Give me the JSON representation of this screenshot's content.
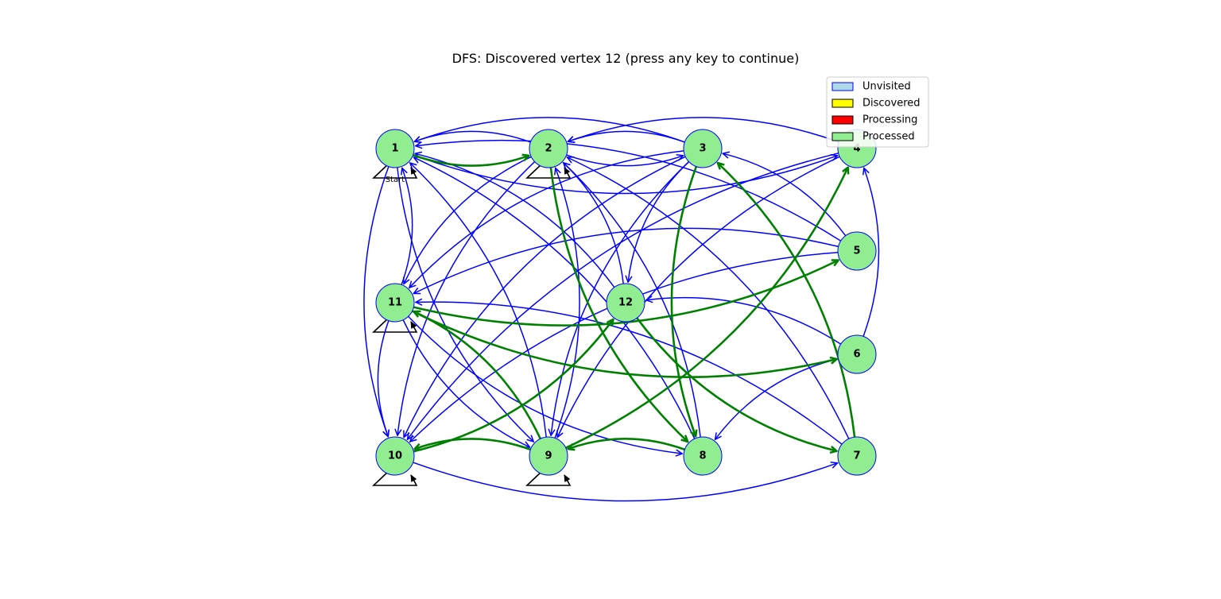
{
  "title": "DFS: Discovered vertex 12 (press any key to continue)",
  "start_label": "Start",
  "colors": {
    "tree_edge": "#008000",
    "edge": "#0000ff",
    "self_loop": "#000000",
    "node_fill": "#90ee90",
    "node_stroke": "#0000ff"
  },
  "legend": [
    {
      "label": "Unvisited",
      "color": "#add8e6"
    },
    {
      "label": "Discovered",
      "color": "#ffff00"
    },
    {
      "label": "Processing",
      "color": "#ff0000"
    },
    {
      "label": "Processed",
      "color": "#90ee90"
    }
  ],
  "nodes": [
    {
      "id": "1",
      "state": "Processed"
    },
    {
      "id": "2",
      "state": "Processed"
    },
    {
      "id": "3",
      "state": "Processed"
    },
    {
      "id": "4",
      "state": "Processed"
    },
    {
      "id": "5",
      "state": "Processed"
    },
    {
      "id": "6",
      "state": "Processed"
    },
    {
      "id": "7",
      "state": "Processed"
    },
    {
      "id": "8",
      "state": "Processed"
    },
    {
      "id": "9",
      "state": "Processed"
    },
    {
      "id": "10",
      "state": "Processed"
    },
    {
      "id": "11",
      "state": "Processed"
    },
    {
      "id": "12",
      "state": "Processed"
    }
  ],
  "start_node": "1",
  "tree_edges": [
    [
      "1",
      "2"
    ],
    [
      "2",
      "8"
    ],
    [
      "8",
      "9"
    ],
    [
      "9",
      "10"
    ],
    [
      "10",
      "12"
    ],
    [
      "12",
      "7"
    ],
    [
      "7",
      "3"
    ],
    [
      "3",
      "8"
    ],
    [
      "9",
      "11"
    ],
    [
      "11",
      "5"
    ],
    [
      "11",
      "6"
    ],
    [
      "9",
      "4"
    ]
  ],
  "edges": [
    [
      "2",
      "1"
    ],
    [
      "1",
      "4"
    ],
    [
      "3",
      "1"
    ],
    [
      "5",
      "1"
    ],
    [
      "3",
      "2"
    ],
    [
      "2",
      "3"
    ],
    [
      "4",
      "2"
    ],
    [
      "5",
      "3"
    ],
    [
      "6",
      "4"
    ],
    [
      "5",
      "11"
    ],
    [
      "6",
      "8"
    ],
    [
      "6",
      "12"
    ],
    [
      "7",
      "2"
    ],
    [
      "7",
      "11"
    ],
    [
      "8",
      "1"
    ],
    [
      "8",
      "2"
    ],
    [
      "2",
      "11"
    ],
    [
      "1",
      "10"
    ],
    [
      "11",
      "1"
    ],
    [
      "11",
      "10"
    ],
    [
      "12",
      "1"
    ],
    [
      "12",
      "2"
    ],
    [
      "1",
      "9"
    ],
    [
      "3",
      "11"
    ],
    [
      "3",
      "10"
    ],
    [
      "3",
      "12"
    ],
    [
      "3",
      "9"
    ],
    [
      "4",
      "9"
    ],
    [
      "4",
      "10"
    ],
    [
      "2",
      "10"
    ],
    [
      "11",
      "9"
    ],
    [
      "11",
      "8"
    ],
    [
      "10",
      "7"
    ],
    [
      "5",
      "10"
    ],
    [
      "9",
      "2"
    ],
    [
      "9",
      "1"
    ]
  ],
  "self_loops": [
    "1",
    "2",
    "9",
    "10",
    "11"
  ]
}
